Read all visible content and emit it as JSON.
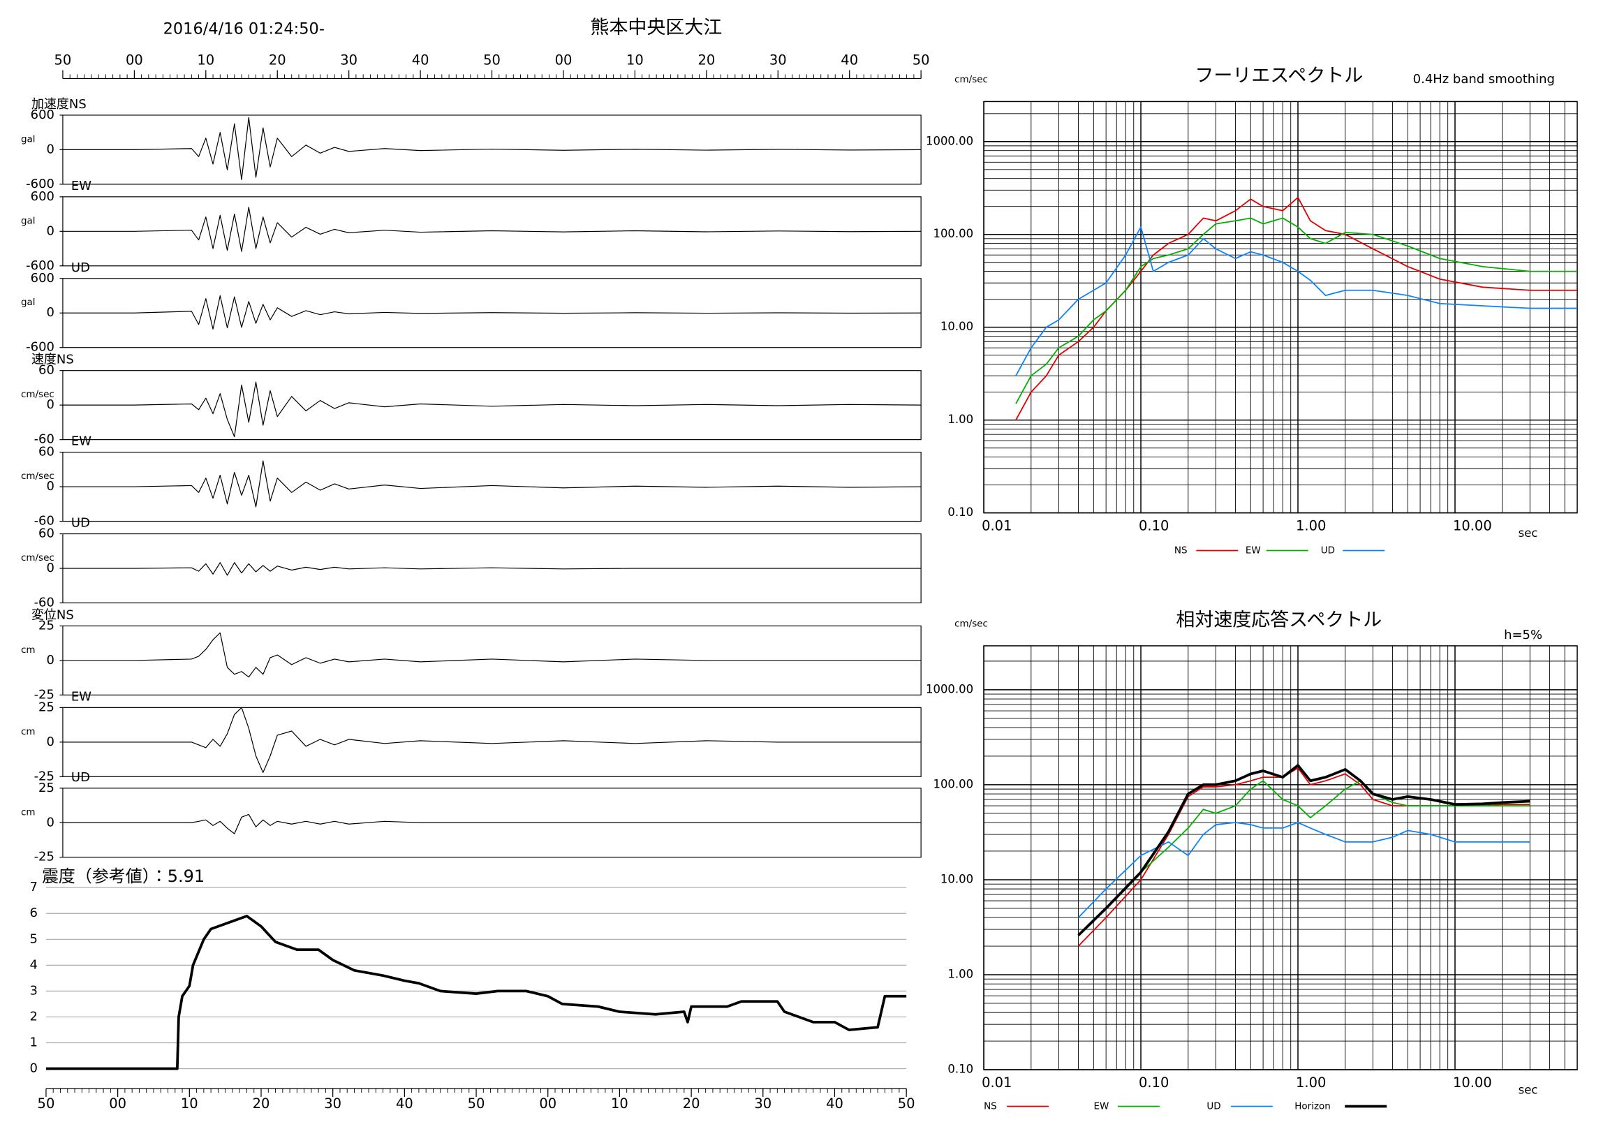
{
  "header": {
    "datetime": "2016/4/16 01:24:50-",
    "location": "熊本中央区大江"
  },
  "chart_data": [
    {
      "type": "line",
      "title": "加速度NS",
      "y_label": "gal",
      "color": "#000000",
      "xlim": [
        0,
        120
      ],
      "xticks": [
        {
          "value": 0,
          "label": "50"
        },
        {
          "value": 10,
          "label": "00"
        },
        {
          "value": 20,
          "label": "10"
        },
        {
          "value": 30,
          "label": "20"
        },
        {
          "value": 40,
          "label": "30"
        },
        {
          "value": 50,
          "label": "40"
        },
        {
          "value": 60,
          "label": "50"
        },
        {
          "value": 70,
          "label": "00"
        },
        {
          "value": 80,
          "label": "10"
        },
        {
          "value": 90,
          "label": "20"
        },
        {
          "value": 100,
          "label": "30"
        },
        {
          "value": 110,
          "label": "40"
        },
        {
          "value": 120,
          "label": "50"
        }
      ],
      "ylim": [
        -600,
        600
      ],
      "yticks": [
        -600,
        0,
        600
      ],
      "x": [
        0,
        10,
        18,
        19,
        20,
        21,
        22,
        23,
        24,
        25,
        26,
        27,
        28,
        29,
        30,
        32,
        34,
        36,
        38,
        40,
        45,
        50,
        60,
        70,
        80,
        90,
        100,
        110,
        120
      ],
      "values": [
        0,
        0,
        20,
        -120,
        200,
        -250,
        300,
        -350,
        450,
        -520,
        560,
        -480,
        380,
        -300,
        200,
        -120,
        80,
        -60,
        40,
        -30,
        20,
        -15,
        10,
        -10,
        8,
        -8,
        6,
        -6,
        0
      ]
    },
    {
      "type": "line",
      "title": "EW",
      "y_label": "gal",
      "color": "#000000",
      "xlim": [
        0,
        120
      ],
      "ylim": [
        -600,
        600
      ],
      "yticks": [
        -600,
        0,
        600
      ],
      "x": [
        0,
        10,
        18,
        19,
        20,
        21,
        22,
        23,
        24,
        25,
        26,
        27,
        28,
        29,
        30,
        32,
        34,
        36,
        38,
        40,
        45,
        50,
        60,
        70,
        80,
        90,
        100,
        110,
        120
      ],
      "values": [
        0,
        0,
        20,
        -150,
        250,
        -300,
        280,
        -330,
        300,
        -350,
        420,
        -300,
        250,
        -200,
        150,
        -100,
        70,
        -50,
        35,
        -25,
        20,
        -15,
        10,
        -10,
        10,
        -8,
        6,
        -5,
        0
      ]
    },
    {
      "type": "line",
      "title": "UD",
      "y_label": "gal",
      "color": "#000000",
      "xlim": [
        0,
        120
      ],
      "ylim": [
        -600,
        600
      ],
      "yticks": [
        -600,
        0,
        600
      ],
      "x": [
        0,
        10,
        18,
        19,
        20,
        21,
        22,
        23,
        24,
        25,
        26,
        27,
        28,
        29,
        30,
        32,
        34,
        36,
        38,
        40,
        45,
        50,
        60,
        70,
        80,
        90,
        100,
        110,
        120
      ],
      "values": [
        0,
        0,
        30,
        -200,
        250,
        -280,
        300,
        -260,
        280,
        -250,
        200,
        -180,
        150,
        -120,
        90,
        -60,
        40,
        -30,
        20,
        -15,
        10,
        -8,
        6,
        -5,
        4,
        -4,
        3,
        -3,
        0
      ]
    },
    {
      "type": "line",
      "title": "速度NS",
      "y_label": "cm/sec",
      "color": "#000000",
      "xlim": [
        0,
        120
      ],
      "ylim": [
        -60,
        60
      ],
      "yticks": [
        -60,
        0,
        60
      ],
      "x": [
        0,
        10,
        18,
        19,
        20,
        21,
        22,
        23,
        24,
        25,
        26,
        27,
        28,
        29,
        30,
        32,
        34,
        36,
        38,
        40,
        45,
        50,
        60,
        70,
        80,
        90,
        100,
        110,
        120
      ],
      "values": [
        0,
        0,
        2,
        -8,
        12,
        -15,
        20,
        -25,
        -55,
        35,
        -30,
        40,
        -35,
        25,
        -20,
        15,
        -10,
        8,
        -6,
        4,
        -3,
        2,
        -2,
        1,
        -1,
        1,
        -1,
        1,
        0
      ]
    },
    {
      "type": "line",
      "title": "EW",
      "y_label": "cm/sec",
      "color": "#000000",
      "xlim": [
        0,
        120
      ],
      "ylim": [
        -60,
        60
      ],
      "yticks": [
        -60,
        0,
        60
      ],
      "x": [
        0,
        10,
        18,
        19,
        20,
        21,
        22,
        23,
        24,
        25,
        26,
        27,
        28,
        29,
        30,
        32,
        34,
        36,
        38,
        40,
        45,
        50,
        60,
        70,
        80,
        90,
        100,
        110,
        120
      ],
      "values": [
        0,
        0,
        2,
        -10,
        15,
        -20,
        20,
        -30,
        25,
        -15,
        20,
        -35,
        45,
        -25,
        15,
        -10,
        8,
        -6,
        5,
        -4,
        3,
        -3,
        2,
        -2,
        1,
        -1,
        1,
        -1,
        0
      ]
    },
    {
      "type": "line",
      "title": "UD",
      "y_label": "cm/sec",
      "color": "#000000",
      "xlim": [
        0,
        120
      ],
      "ylim": [
        -60,
        60
      ],
      "yticks": [
        -60,
        0,
        60
      ],
      "x": [
        0,
        10,
        18,
        19,
        20,
        21,
        22,
        23,
        24,
        25,
        26,
        27,
        28,
        29,
        30,
        32,
        34,
        36,
        38,
        40,
        45,
        50,
        60,
        70,
        80,
        90,
        100,
        110,
        120
      ],
      "values": [
        0,
        0,
        1,
        -5,
        8,
        -10,
        10,
        -12,
        10,
        -8,
        8,
        -6,
        5,
        -5,
        4,
        -3,
        2,
        -2,
        2,
        -1,
        1,
        -1,
        1,
        -1,
        0,
        0,
        0,
        0,
        0
      ]
    },
    {
      "type": "line",
      "title": "変位NS",
      "y_label": "cm",
      "color": "#000000",
      "xlim": [
        0,
        120
      ],
      "ylim": [
        -25,
        25
      ],
      "yticks": [
        -25,
        0,
        25
      ],
      "x": [
        0,
        10,
        18,
        19,
        20,
        21,
        22,
        23,
        24,
        25,
        26,
        27,
        28,
        29,
        30,
        32,
        34,
        36,
        38,
        40,
        45,
        50,
        60,
        70,
        80,
        90,
        100,
        110,
        120
      ],
      "values": [
        0,
        0,
        1,
        3,
        8,
        15,
        20,
        -5,
        -10,
        -8,
        -12,
        -5,
        -10,
        2,
        4,
        -3,
        2,
        -2,
        1,
        -1,
        1,
        -1,
        1,
        -1,
        1,
        0,
        0,
        0,
        0
      ]
    },
    {
      "type": "line",
      "title": "EW",
      "y_label": "cm",
      "color": "#000000",
      "xlim": [
        0,
        120
      ],
      "ylim": [
        -25,
        25
      ],
      "yticks": [
        -25,
        0,
        25
      ],
      "x": [
        0,
        10,
        18,
        19,
        20,
        21,
        22,
        23,
        24,
        25,
        26,
        27,
        28,
        29,
        30,
        32,
        34,
        36,
        38,
        40,
        45,
        50,
        60,
        70,
        80,
        90,
        100,
        110,
        120
      ],
      "values": [
        0,
        0,
        0,
        -2,
        -4,
        2,
        -3,
        6,
        20,
        25,
        10,
        -10,
        -22,
        -10,
        5,
        8,
        -3,
        2,
        -2,
        2,
        -1,
        1,
        -1,
        1,
        -1,
        1,
        0,
        0,
        0
      ]
    },
    {
      "type": "line",
      "title": "UD",
      "y_label": "cm",
      "color": "#000000",
      "xlim": [
        0,
        120
      ],
      "ylim": [
        -25,
        25
      ],
      "yticks": [
        -25,
        0,
        25
      ],
      "x": [
        0,
        10,
        18,
        19,
        20,
        21,
        22,
        23,
        24,
        25,
        26,
        27,
        28,
        29,
        30,
        32,
        34,
        36,
        38,
        40,
        45,
        50,
        60,
        70,
        80,
        90,
        100,
        110,
        120
      ],
      "values": [
        0,
        0,
        0,
        1,
        2,
        -2,
        1,
        -4,
        -8,
        4,
        6,
        -3,
        2,
        -2,
        1,
        -1,
        1,
        -1,
        1,
        -1,
        1,
        0,
        0,
        0,
        0,
        0,
        0,
        0,
        0
      ]
    },
    {
      "type": "line",
      "title": "震度（参考値）：5.91",
      "color": "#000000",
      "grid": true,
      "xlim": [
        0,
        120
      ],
      "xticks": [
        {
          "value": 0,
          "label": "50"
        },
        {
          "value": 10,
          "label": "00"
        },
        {
          "value": 20,
          "label": "10"
        },
        {
          "value": 30,
          "label": "20"
        },
        {
          "value": 40,
          "label": "30"
        },
        {
          "value": 50,
          "label": "40"
        },
        {
          "value": 60,
          "label": "50"
        },
        {
          "value": 70,
          "label": "00"
        },
        {
          "value": 80,
          "label": "10"
        },
        {
          "value": 90,
          "label": "20"
        },
        {
          "value": 100,
          "label": "30"
        },
        {
          "value": 110,
          "label": "40"
        },
        {
          "value": 120,
          "label": "50"
        }
      ],
      "ylim": [
        0,
        7
      ],
      "yticks": [
        0,
        1,
        2,
        3,
        4,
        5,
        6,
        7
      ],
      "x": [
        0,
        18.3,
        18.5,
        19,
        20,
        20.5,
        22,
        23,
        26,
        28,
        30,
        32,
        35,
        38,
        40,
        43,
        47,
        50,
        52,
        55,
        60,
        63,
        67,
        70,
        72,
        77,
        80,
        85,
        89,
        89.5,
        90,
        95,
        97,
        102,
        103,
        107,
        110,
        112,
        116,
        117,
        120
      ],
      "values": [
        0,
        0,
        2,
        2.8,
        3.2,
        4,
        5,
        5.4,
        5.7,
        5.9,
        5.5,
        4.9,
        4.6,
        4.6,
        4.2,
        3.8,
        3.6,
        3.4,
        3.3,
        3.0,
        2.9,
        3.0,
        3.0,
        2.8,
        2.5,
        2.4,
        2.2,
        2.1,
        2.2,
        1.8,
        2.4,
        2.4,
        2.6,
        2.6,
        2.2,
        1.8,
        1.8,
        1.5,
        1.6,
        2.8,
        2.8
      ]
    },
    {
      "type": "line",
      "title": "フーリエスペクトル",
      "subtitle": "0.4Hz band smoothing",
      "y_label": "cm/sec",
      "x_label": "sec",
      "xscale": "log",
      "yscale": "log",
      "grid": true,
      "xlim": [
        0.01,
        60
      ],
      "xticks": [
        0.01,
        {
          "value": 0.1,
          "label": "0.10"
        },
        {
          "value": 1,
          "label": "1.00"
        },
        {
          "value": 10,
          "label": "10.00"
        }
      ],
      "ylim": [
        0.1,
        2700
      ],
      "yticks": [
        {
          "value": 0.1,
          "label": "0.10"
        },
        {
          "value": 1,
          "label": "1.00"
        },
        {
          "value": 10,
          "label": "10.00"
        },
        {
          "value": 100,
          "label": "100.00"
        },
        {
          "value": 1000,
          "label": "1000.00"
        }
      ],
      "x": [
        0.016,
        0.02,
        0.025,
        0.03,
        0.04,
        0.05,
        0.06,
        0.08,
        0.1,
        0.12,
        0.15,
        0.2,
        0.25,
        0.3,
        0.4,
        0.5,
        0.6,
        0.8,
        1,
        1.2,
        1.5,
        2,
        3,
        5,
        8,
        15,
        30,
        60
      ],
      "series": [
        {
          "name": "NS",
          "color": "#e00000",
          "values": [
            1,
            2,
            3,
            5,
            7,
            10,
            15,
            25,
            40,
            60,
            80,
            100,
            150,
            140,
            180,
            240,
            200,
            180,
            250,
            140,
            110,
            100,
            70,
            45,
            33,
            27,
            25,
            25
          ]
        },
        {
          "name": "EW",
          "color": "#00b000",
          "values": [
            1.5,
            3,
            4,
            6,
            8,
            12,
            15,
            25,
            45,
            55,
            60,
            70,
            100,
            130,
            140,
            150,
            130,
            150,
            120,
            90,
            80,
            105,
            100,
            75,
            55,
            45,
            40,
            40
          ]
        },
        {
          "name": "UD",
          "color": "#0a84ff",
          "values": [
            3,
            6,
            10,
            12,
            20,
            25,
            30,
            60,
            120,
            40,
            50,
            60,
            90,
            70,
            55,
            65,
            60,
            50,
            40,
            32,
            22,
            25,
            25,
            22,
            18,
            17,
            16,
            16
          ]
        }
      ]
    },
    {
      "type": "line",
      "title": "相対速度応答スペクトル",
      "subtitle": "h=5%",
      "y_label": "cm/sec",
      "x_label": "sec",
      "xscale": "log",
      "yscale": "log",
      "grid": true,
      "xlim": [
        0.01,
        60
      ],
      "xticks": [
        0.01,
        {
          "value": 0.1,
          "label": "0.10"
        },
        {
          "value": 1,
          "label": "1.00"
        },
        {
          "value": 10,
          "label": "10.00"
        }
      ],
      "ylim": [
        0.1,
        2900
      ],
      "yticks": [
        {
          "value": 0.1,
          "label": "0.10"
        },
        {
          "value": 1,
          "label": "1.00"
        },
        {
          "value": 10,
          "label": "10.00"
        },
        {
          "value": 100,
          "label": "100.00"
        },
        {
          "value": 1000,
          "label": "1000.00"
        }
      ],
      "x": [
        0.04,
        0.06,
        0.1,
        0.15,
        0.2,
        0.25,
        0.3,
        0.4,
        0.5,
        0.6,
        0.8,
        1,
        1.2,
        1.5,
        2,
        2.5,
        3,
        4,
        5,
        7,
        10,
        15,
        20,
        30
      ],
      "series": [
        {
          "name": "NS",
          "color": "#e00000",
          "values": [
            2,
            4,
            10,
            30,
            75,
            95,
            95,
            100,
            110,
            120,
            120,
            150,
            100,
            110,
            130,
            100,
            70,
            60,
            60,
            60,
            60,
            60,
            62,
            62
          ]
        },
        {
          "name": "EW",
          "color": "#00b000",
          "values": [
            2.6,
            5,
            12,
            22,
            35,
            55,
            50,
            60,
            90,
            110,
            70,
            60,
            45,
            60,
            90,
            110,
            80,
            65,
            60,
            60,
            60,
            60,
            60,
            60
          ]
        },
        {
          "name": "UD",
          "color": "#0a84ff",
          "values": [
            4,
            8,
            18,
            25,
            18,
            30,
            38,
            40,
            38,
            35,
            35,
            40,
            35,
            30,
            25,
            25,
            25,
            28,
            33,
            30,
            25,
            25,
            25,
            25
          ]
        },
        {
          "name": "Horizon",
          "color": "#000000",
          "values": [
            2.6,
            5,
            12,
            32,
            80,
            100,
            100,
            110,
            130,
            140,
            120,
            160,
            110,
            120,
            145,
            110,
            80,
            70,
            75,
            70,
            62,
            63,
            65,
            67
          ]
        }
      ]
    }
  ]
}
